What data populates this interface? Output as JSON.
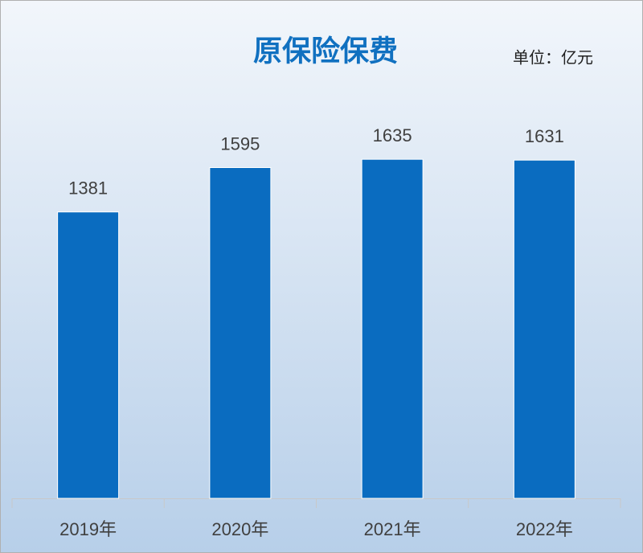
{
  "chart_data": {
    "type": "bar",
    "title": "原保险保费",
    "unit": "单位：亿元",
    "categories": [
      "2019年",
      "2020年",
      "2021年",
      "2022年"
    ],
    "values": [
      1381,
      1595,
      1635,
      1631
    ],
    "color": "#0a6cc0"
  }
}
